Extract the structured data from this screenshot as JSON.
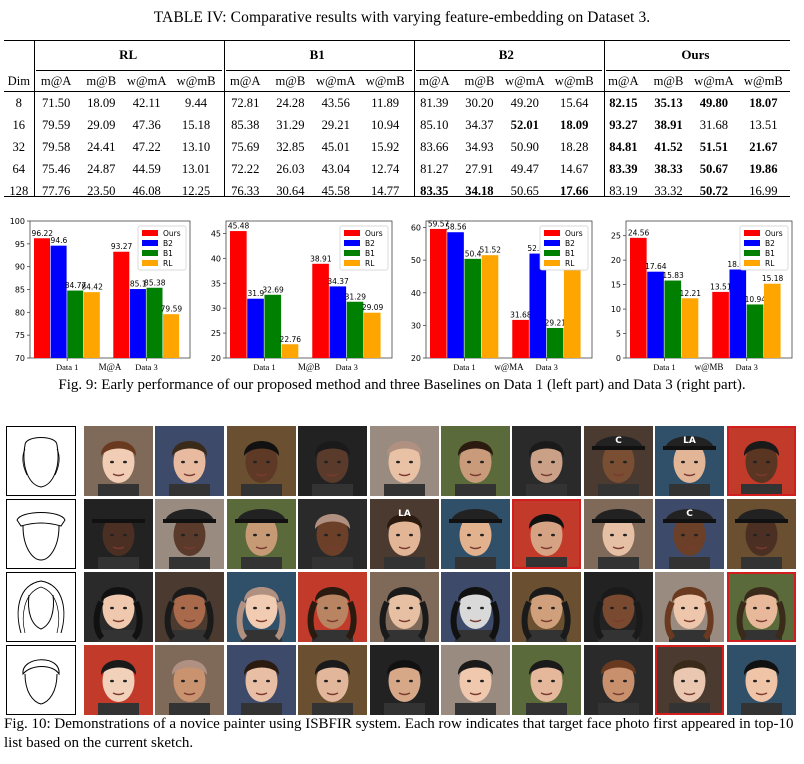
{
  "table": {
    "caption": "TABLE IV: Comparative results with varying feature-embedding on Dataset 3.",
    "groups": [
      "RL",
      "B1",
      "B2",
      "Ours"
    ],
    "dim_header": "Dim",
    "metrics": [
      "m@A",
      "m@B",
      "w@mA",
      "w@mB"
    ],
    "rows": [
      {
        "dim": "8",
        "vals": [
          "71.50",
          "18.09",
          "42.11",
          "9.44",
          "72.81",
          "24.28",
          "43.56",
          "11.89",
          "81.39",
          "30.20",
          "49.20",
          "15.64",
          "82.15",
          "35.13",
          "49.80",
          "18.07"
        ],
        "bold": [
          12,
          13,
          14,
          15
        ]
      },
      {
        "dim": "16",
        "vals": [
          "79.59",
          "29.09",
          "47.36",
          "15.18",
          "85.38",
          "31.29",
          "29.21",
          "10.94",
          "85.10",
          "34.37",
          "52.01",
          "18.09",
          "93.27",
          "38.91",
          "31.68",
          "13.51"
        ],
        "bold": [
          10,
          11,
          12,
          13
        ]
      },
      {
        "dim": "32",
        "vals": [
          "79.58",
          "24.41",
          "47.22",
          "13.10",
          "75.69",
          "32.85",
          "45.01",
          "15.92",
          "83.66",
          "34.93",
          "50.90",
          "18.28",
          "84.81",
          "41.52",
          "51.51",
          "21.67"
        ],
        "bold": [
          12,
          13,
          14,
          15
        ]
      },
      {
        "dim": "64",
        "vals": [
          "75.46",
          "24.87",
          "44.59",
          "13.01",
          "72.22",
          "26.03",
          "43.04",
          "12.74",
          "81.27",
          "27.91",
          "49.47",
          "14.67",
          "83.39",
          "38.33",
          "50.67",
          "19.86"
        ],
        "bold": [
          12,
          13,
          14,
          15
        ]
      },
      {
        "dim": "128",
        "vals": [
          "77.76",
          "23.50",
          "46.08",
          "12.25",
          "76.33",
          "30.64",
          "45.58",
          "14.77",
          "83.35",
          "34.18",
          "50.65",
          "17.66",
          "83.19",
          "33.32",
          "50.72",
          "16.99"
        ],
        "bold": [
          8,
          9,
          11,
          14
        ]
      }
    ]
  },
  "colors": {
    "Ours": "#ff0000",
    "B2": "#0000ff",
    "B1": "#008000",
    "RL": "#ffa500"
  },
  "chart_data": [
    {
      "type": "bar",
      "title": "",
      "xlabel": "M@A",
      "categories": [
        "Data 1",
        "Data 3"
      ],
      "ylim": [
        70,
        100
      ],
      "yticks": [
        70,
        75,
        80,
        85,
        90,
        95,
        100
      ],
      "series": [
        {
          "name": "Ours",
          "values": [
            96.22,
            93.27
          ]
        },
        {
          "name": "B2",
          "values": [
            94.6,
            85.1
          ]
        },
        {
          "name": "B1",
          "values": [
            84.77,
            85.38
          ]
        },
        {
          "name": "RL",
          "values": [
            84.42,
            79.59
          ]
        }
      ],
      "data_labels": [
        [
          "96.22",
          "93.27"
        ],
        [
          "94.6",
          "85.1"
        ],
        [
          "84.77",
          "85.38"
        ],
        [
          "84.42",
          "79.59"
        ]
      ],
      "legend": "top-right"
    },
    {
      "type": "bar",
      "title": "",
      "xlabel": "M@B",
      "categories": [
        "Data 1",
        "Data 3"
      ],
      "ylim": [
        20,
        47.5
      ],
      "yticks": [
        20,
        25,
        30,
        35,
        40,
        45
      ],
      "series": [
        {
          "name": "Ours",
          "values": [
            45.48,
            38.91
          ]
        },
        {
          "name": "B2",
          "values": [
            31.9,
            34.37
          ]
        },
        {
          "name": "B1",
          "values": [
            32.69,
            31.29
          ]
        },
        {
          "name": "RL",
          "values": [
            22.76,
            29.09
          ]
        }
      ],
      "data_labels": [
        [
          "45.48",
          "38.91"
        ],
        [
          "31.9",
          "34.37"
        ],
        [
          "32.69",
          "31.29"
        ],
        [
          "22.76",
          "29.09"
        ]
      ],
      "legend": "top-right"
    },
    {
      "type": "bar",
      "title": "",
      "xlabel": "w@MA",
      "categories": [
        "Data 1",
        "Data 3"
      ],
      "ylim": [
        20,
        62
      ],
      "yticks": [
        20,
        30,
        40,
        50,
        60
      ],
      "series": [
        {
          "name": "Ours",
          "values": [
            59.57,
            31.68
          ]
        },
        {
          "name": "B2",
          "values": [
            58.56,
            52.01
          ]
        },
        {
          "name": "B1",
          "values": [
            50.4,
            29.21
          ]
        },
        {
          "name": "RL",
          "values": [
            51.52,
            47.36
          ]
        }
      ],
      "data_labels": [
        [
          "59.57",
          "31.68"
        ],
        [
          "58.56",
          "52.01"
        ],
        [
          "50.4",
          "29.21"
        ],
        [
          "51.52",
          "47.36"
        ]
      ],
      "legend": "top-right"
    },
    {
      "type": "bar",
      "title": "",
      "xlabel": "w@MB",
      "categories": [
        "Data 1",
        "Data 3"
      ],
      "ylim": [
        0,
        28
      ],
      "yticks": [
        0,
        5,
        10,
        15,
        20,
        25
      ],
      "series": [
        {
          "name": "Ours",
          "values": [
            24.56,
            13.51
          ]
        },
        {
          "name": "B2",
          "values": [
            17.64,
            18.09
          ]
        },
        {
          "name": "B1",
          "values": [
            15.83,
            10.94
          ]
        },
        {
          "name": "RL",
          "values": [
            12.21,
            15.18
          ]
        }
      ],
      "data_labels": [
        [
          "24.56",
          "13.51"
        ],
        [
          "17.64",
          "18.09"
        ],
        [
          "15.83",
          "10.94"
        ],
        [
          "12.21",
          "15.18"
        ]
      ],
      "legend": "top-right"
    }
  ],
  "fig9_caption": "Fig. 9: Early performance of our proposed method and three Baselines on Data 1 (left part) and Data 3 (right part).",
  "fig10_caption": "Fig. 10: Demonstrations of a novice painter using ISBFIR system. Each row indicates that target face photo first appeared in top-10 list based on the current sketch.",
  "face_grid": {
    "rows": [
      {
        "sketch": "face-outline-sketch",
        "hit_index": 9
      },
      {
        "sketch": "hat-face-sketch",
        "hit_index": 6
      },
      {
        "sketch": "long-hair-sketch",
        "hit_index": 9
      },
      {
        "sketch": "short-hair-sketch",
        "hit_index": 8
      }
    ],
    "photo_labels": [
      [
        "",
        "",
        "",
        "",
        "",
        "",
        "",
        "C",
        "LA",
        ""
      ],
      [
        "",
        "",
        "",
        "",
        "LA",
        "",
        "",
        "",
        "C",
        ""
      ],
      [
        "",
        "",
        "",
        "",
        "",
        "",
        "",
        "",
        "",
        ""
      ],
      [
        "",
        "",
        "",
        "",
        "",
        "",
        "",
        "",
        "",
        ""
      ]
    ]
  }
}
